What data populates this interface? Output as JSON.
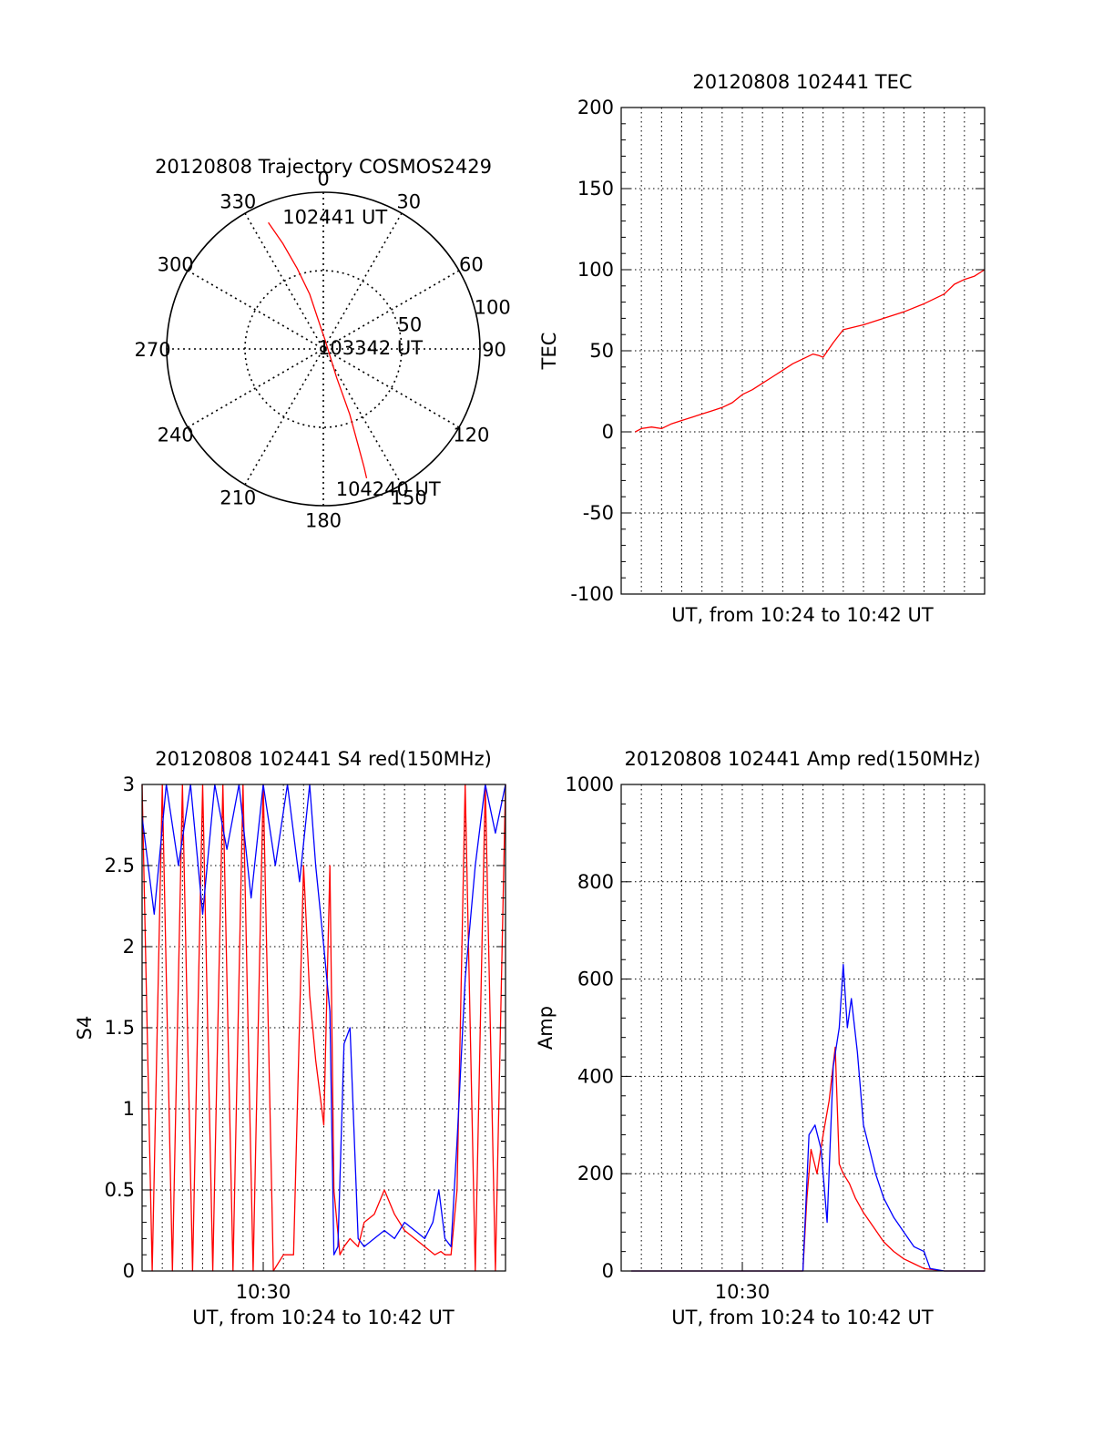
{
  "chart_data": [
    {
      "id": "trajectory",
      "type": "polar",
      "title": "20120808 Trajectory COSMOS2429",
      "azimuth_labels": [
        "0",
        "30",
        "60",
        "90",
        "120",
        "150",
        "180",
        "210",
        "240",
        "270",
        "300",
        "330"
      ],
      "radius_labels": [
        "50",
        "100"
      ],
      "r_max": 100,
      "series": [
        {
          "color": "#ff0000",
          "points": [
            [
              -23.5,
              88
            ],
            [
              -21,
              72
            ],
            [
              -18,
              54
            ],
            [
              -14,
              36
            ],
            [
              -5,
              12
            ],
            [
              10,
              6
            ],
            [
              155,
              20
            ],
            [
              158,
              45
            ],
            [
              160,
              64
            ],
            [
              161,
              80
            ],
            [
              161.5,
              87
            ]
          ]
        }
      ],
      "annotations": [
        {
          "text": "102441 UT",
          "az": 5,
          "r": 85
        },
        {
          "text": "103342 UT",
          "az": 88,
          "r": 30
        },
        {
          "text": "104240 UT",
          "az": 155,
          "r": 98
        }
      ]
    },
    {
      "id": "tec",
      "type": "line",
      "title": "20120808 102441 TEC",
      "ylabel": "TEC",
      "xlabel": "UT, from 10:24 to 10:42 UT",
      "x_unit": "minutes after 10:24",
      "xlim": [
        0,
        18
      ],
      "ylim": [
        -100,
        200
      ],
      "yticks": [
        "-100",
        "-50",
        "0",
        "50",
        "100",
        "150",
        "200"
      ],
      "series": [
        {
          "color": "#ff0000",
          "x": [
            0.7,
            1.0,
            1.5,
            2.0,
            2.5,
            3.0,
            3.5,
            4.0,
            4.5,
            5.0,
            5.5,
            6.0,
            6.5,
            7.0,
            7.5,
            8.0,
            8.5,
            9.0,
            9.5,
            9.8,
            10.0,
            10.5,
            11.0,
            12.0,
            13.0,
            14.0,
            15.0,
            16.0,
            16.5,
            17.0,
            17.5,
            18.0
          ],
          "y": [
            0,
            2,
            3,
            2,
            5,
            7,
            9,
            11,
            13,
            15,
            18,
            23,
            26,
            30,
            34,
            38,
            42,
            45,
            48,
            47,
            46,
            55,
            63,
            66,
            70,
            74,
            79,
            85,
            91,
            94,
            96,
            100
          ]
        }
      ]
    },
    {
      "id": "s4",
      "type": "line",
      "title": "20120808 102441 S4 red(150MHz)",
      "ylabel": "S4",
      "xlabel": "UT, from 10:24 to 10:42 UT",
      "x_unit": "minutes after 10:24",
      "xlim": [
        0,
        18
      ],
      "ylim": [
        0,
        3
      ],
      "yticks": [
        "0",
        "0.5",
        "1",
        "1.5",
        "2",
        "2.5",
        "3"
      ],
      "xticks": [
        {
          "x": 6,
          "label": "10:30"
        }
      ],
      "series": [
        {
          "color": "#ff0000",
          "x": [
            0,
            0.5,
            1,
            1.5,
            2,
            2.5,
            3,
            3.5,
            4,
            4.5,
            5,
            5.5,
            6,
            6.5,
            7,
            7.5,
            8,
            8.3,
            8.6,
            9.0,
            9.3,
            9.5,
            9.8,
            10.0,
            10.3,
            10.7,
            11.0,
            11.5,
            12.0,
            12.5,
            13.0,
            13.5,
            14.0,
            14.5,
            14.8,
            15.0,
            15.3,
            15.6,
            16.0,
            16.5,
            17.0,
            17.5,
            18.0
          ],
          "y": [
            3,
            0,
            3,
            0,
            3,
            0,
            3,
            0,
            3,
            0,
            3,
            0,
            3,
            0,
            0.1,
            0.1,
            2.5,
            1.7,
            1.3,
            0.9,
            2.5,
            0.5,
            0.1,
            0.15,
            0.2,
            0.15,
            0.3,
            0.35,
            0.5,
            0.35,
            0.25,
            0.2,
            0.15,
            0.1,
            0.12,
            0.1,
            0.1,
            0.5,
            3,
            0,
            3,
            0,
            3
          ]
        },
        {
          "color": "#0000ff",
          "x": [
            0,
            0.6,
            1.2,
            1.8,
            2.4,
            3.0,
            3.6,
            4.2,
            4.8,
            5.4,
            6.0,
            6.6,
            7.2,
            7.8,
            8.3,
            8.6,
            9.0,
            9.3,
            9.5,
            9.7,
            10.0,
            10.3,
            10.7,
            11.0,
            11.5,
            12.0,
            12.5,
            13.0,
            13.5,
            14.0,
            14.4,
            14.7,
            15.0,
            15.3,
            15.6,
            16.0,
            16.5,
            17.0,
            17.5,
            18.0
          ],
          "y": [
            2.8,
            2.2,
            3,
            2.5,
            3,
            2.2,
            3,
            2.6,
            3,
            2.3,
            3,
            2.5,
            3,
            2.4,
            3,
            2.5,
            2.0,
            1.6,
            0.1,
            0.15,
            1.4,
            1.5,
            0.2,
            0.15,
            0.2,
            0.25,
            0.2,
            0.3,
            0.25,
            0.2,
            0.3,
            0.5,
            0.2,
            0.15,
            0.8,
            1.8,
            2.5,
            3,
            2.7,
            3
          ]
        }
      ]
    },
    {
      "id": "amp",
      "type": "line",
      "title": "20120808 102441 Amp red(150MHz)",
      "ylabel": "Amp",
      "xlabel": "UT, from 10:24 to 10:42 UT",
      "x_unit": "minutes after 10:24",
      "xlim": [
        0,
        18
      ],
      "ylim": [
        0,
        1000
      ],
      "yticks": [
        "0",
        "200",
        "400",
        "600",
        "800",
        "1000"
      ],
      "xticks": [
        {
          "x": 6,
          "label": "10:30"
        }
      ],
      "series": [
        {
          "color": "#ff0000",
          "x": [
            0.5,
            9.0,
            9.2,
            9.4,
            9.7,
            10.0,
            10.3,
            10.6,
            10.8,
            11.0,
            11.3,
            11.6,
            12.0,
            12.5,
            13.0,
            13.5,
            14.0,
            14.5,
            15.0,
            16.0,
            18.0
          ],
          "y": [
            0,
            0,
            150,
            250,
            200,
            280,
            350,
            460,
            220,
            200,
            180,
            150,
            120,
            90,
            60,
            40,
            25,
            15,
            5,
            0,
            0
          ]
        },
        {
          "color": "#0000ff",
          "x": [
            0.5,
            9.0,
            9.3,
            9.6,
            9.9,
            10.2,
            10.5,
            10.8,
            11.0,
            11.2,
            11.4,
            11.7,
            12.0,
            12.3,
            12.6,
            13.0,
            13.5,
            14.0,
            14.5,
            15.0,
            15.3,
            16.0,
            18.0
          ],
          "y": [
            0,
            0,
            280,
            300,
            250,
            100,
            420,
            500,
            630,
            500,
            560,
            450,
            300,
            250,
            200,
            150,
            110,
            80,
            50,
            40,
            5,
            0,
            0
          ]
        }
      ]
    }
  ]
}
